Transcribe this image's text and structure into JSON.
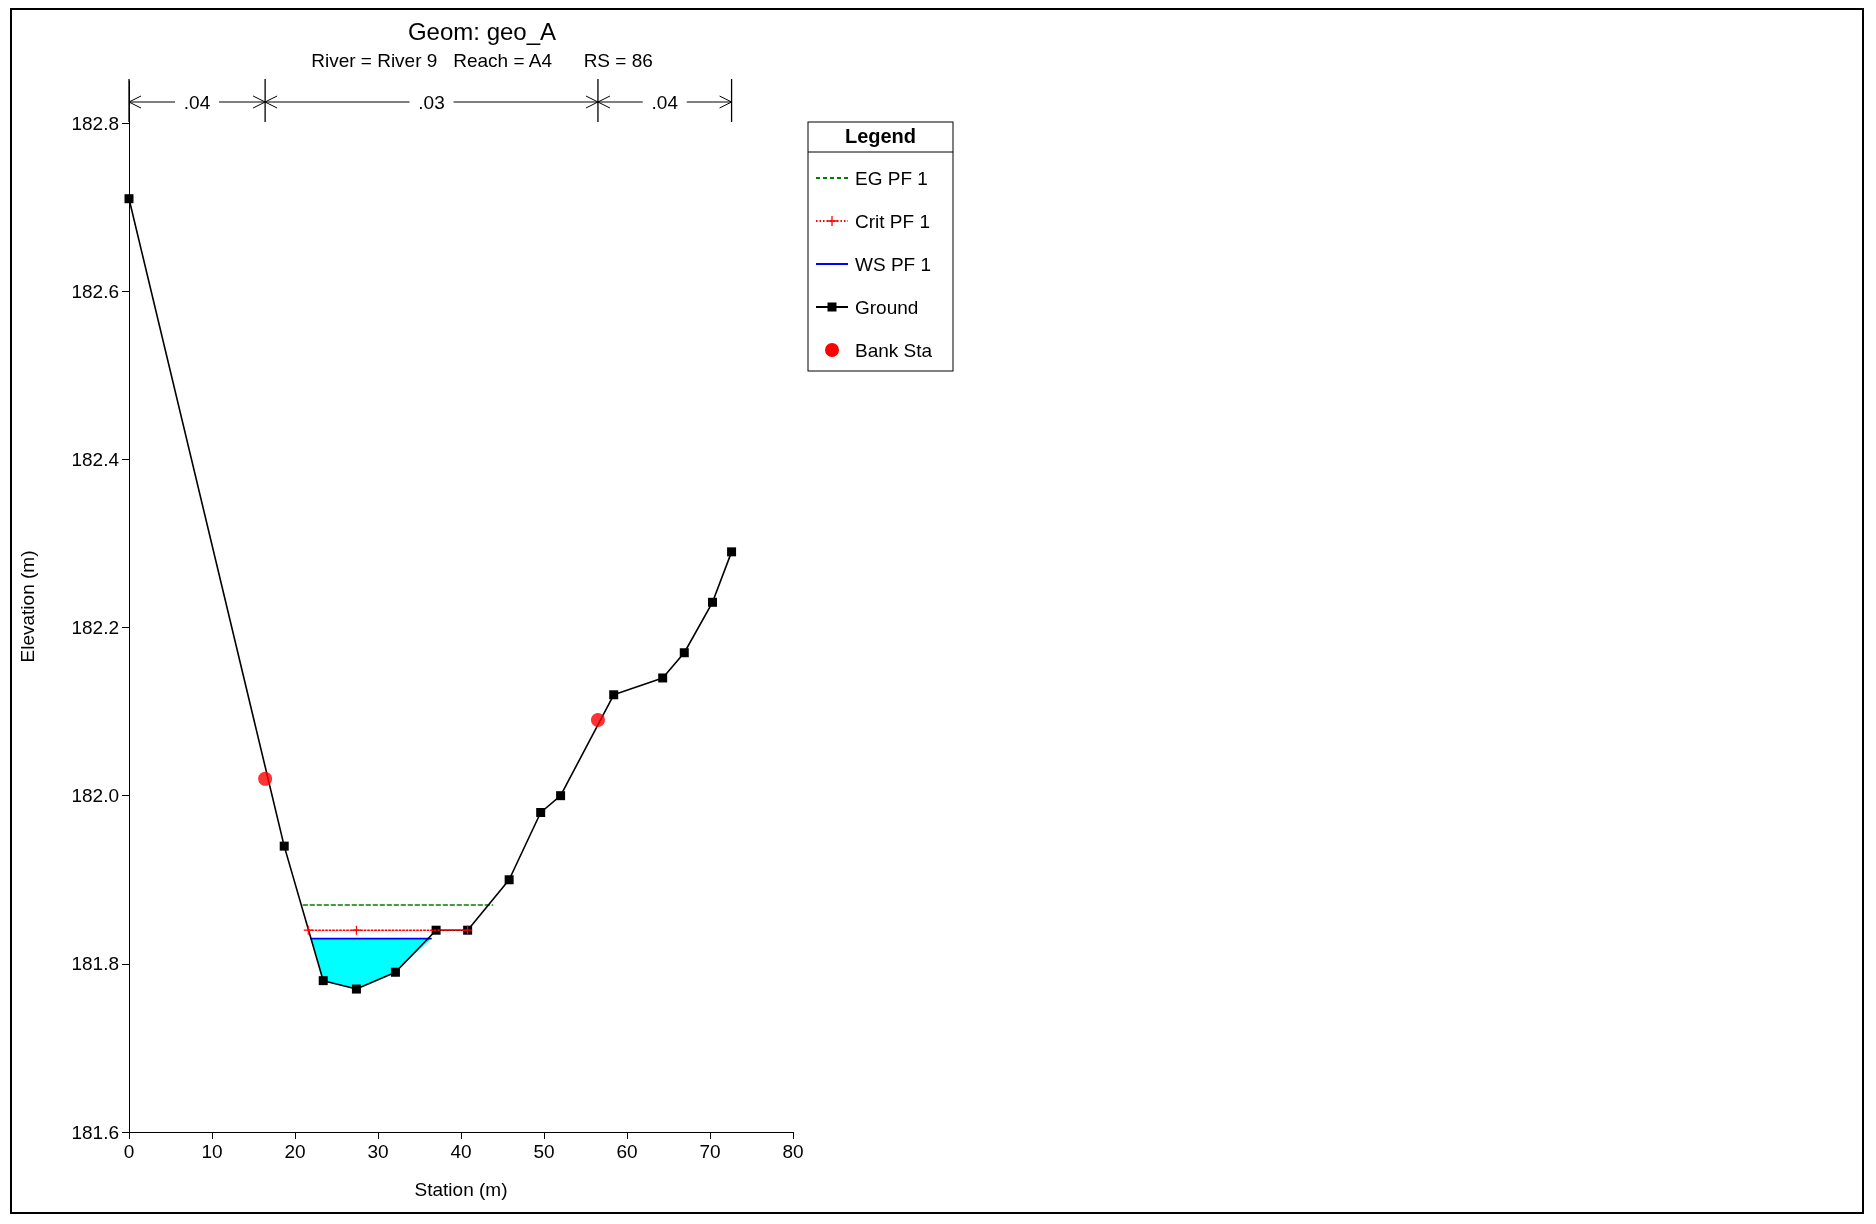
{
  "chart_data": {
    "type": "line",
    "title": "Geom: geo_A",
    "subtitle": "River = River 9   Reach = A4      RS = 86",
    "xlabel": "Station (m)",
    "ylabel": "Elevation (m)",
    "legend_title": "Legend",
    "legend": "right",
    "grid": false,
    "xlim": [
      0,
      80
    ],
    "xticks": [
      0,
      10,
      20,
      30,
      40,
      50,
      60,
      70,
      80
    ],
    "ylim": [
      181.6,
      182.85
    ],
    "yticks": [
      181.6,
      181.8,
      {
        "value": 182.0,
        "label": "182.0"
      },
      182.2,
      182.4,
      182.6,
      182.8
    ],
    "annotations": [
      ".04",
      ".03",
      ".04"
    ],
    "series": [
      {
        "name": "EG PF 1",
        "color": "#008000",
        "line_style": "dashed",
        "marker": "none",
        "x": [
          21.0,
          43.8
        ],
        "values": [
          181.87,
          181.87
        ]
      },
      {
        "name": "Crit PF 1",
        "color": "#ff0000",
        "line_style": "dotted",
        "marker": "cross",
        "x": [
          21.6,
          27.4,
          40.8
        ],
        "values": [
          181.84,
          181.84,
          181.84
        ]
      },
      {
        "name": "WS PF 1",
        "color": "#0000ff",
        "line_style": "solid",
        "marker": "none",
        "x": [
          21.9,
          23.4,
          27.4,
          32.1,
          36.4
        ],
        "values": [
          181.83,
          181.83,
          181.83,
          181.83,
          181.83
        ],
        "upper": [
          181.83,
          181.83,
          181.83,
          181.83,
          181.83
        ],
        "lower": [
          181.83,
          181.78,
          181.77,
          181.79,
          181.83
        ]
      },
      {
        "name": "Ground",
        "color": "#000000",
        "line_style": "solid",
        "marker": "square",
        "x": [
          0,
          18.7,
          23.4,
          27.4,
          32.1,
          37.0,
          40.8,
          45.8,
          49.6,
          52.0,
          58.4,
          64.3,
          66.9,
          70.3,
          72.6
        ],
        "values": [
          182.71,
          181.94,
          181.78,
          181.77,
          181.79,
          181.84,
          181.84,
          181.9,
          181.98,
          182.0,
          182.12,
          182.14,
          182.17,
          182.23,
          182.29
        ]
      },
      {
        "name": "Bank Sta",
        "type": "scatter",
        "color": "#ff0000",
        "marker": "circle",
        "x": [
          16.4,
          56.5
        ],
        "values": [
          182.02,
          182.09
        ]
      }
    ]
  }
}
